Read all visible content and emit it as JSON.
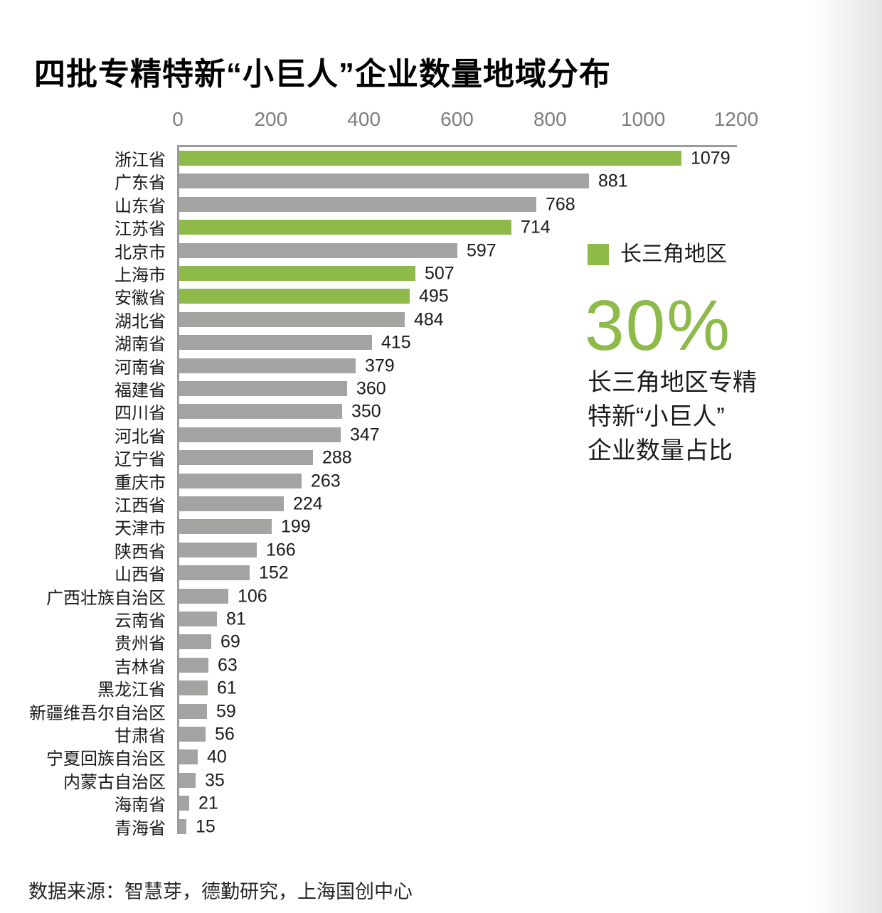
{
  "title": "四批专精特新“小巨人”企业数量地域分布",
  "chart_data": {
    "type": "bar",
    "orientation": "horizontal",
    "title": "四批专精特新“小巨人”企业数量地域分布",
    "categories": [
      "浙江省",
      "广东省",
      "山东省",
      "江苏省",
      "北京市",
      "上海市",
      "安徽省",
      "湖北省",
      "湖南省",
      "河南省",
      "福建省",
      "四川省",
      "河北省",
      "辽宁省",
      "重庆市",
      "江西省",
      "天津市",
      "陕西省",
      "山西省",
      "广西壮族自治区",
      "云南省",
      "贵州省",
      "吉林省",
      "黑龙江省",
      "新疆维吾尔自治区",
      "甘肃省",
      "宁夏回族自治区",
      "内蒙古自治区",
      "海南省",
      "青海省"
    ],
    "values": [
      1079,
      881,
      768,
      714,
      597,
      507,
      495,
      484,
      415,
      379,
      360,
      350,
      347,
      288,
      263,
      224,
      199,
      166,
      152,
      106,
      81,
      69,
      63,
      61,
      59,
      56,
      40,
      35,
      21,
      15
    ],
    "highlighted_categories": [
      "浙江省",
      "江苏省",
      "上海市",
      "安徽省"
    ],
    "x_ticks": [
      0,
      200,
      400,
      600,
      800,
      1000,
      1200
    ],
    "xlim": [
      0,
      1200
    ],
    "grid": false,
    "data_labels": true,
    "bar_color": "#a3a3a1",
    "highlight_color": "#8eba4a",
    "axis_color": "#9b9b9b",
    "tick_text_color": "#7d7d7d",
    "legend_position": "right"
  },
  "legend": {
    "label": "长三角地区",
    "color": "#8eba4a"
  },
  "callout": {
    "percent": "30%",
    "percent_color": "#8eba4a",
    "description_lines": [
      "长三角地区专精",
      "特新“小巨人”",
      "企业数量占比"
    ]
  },
  "source": "数据来源：智慧芽，德勤研究，上海国创中心"
}
